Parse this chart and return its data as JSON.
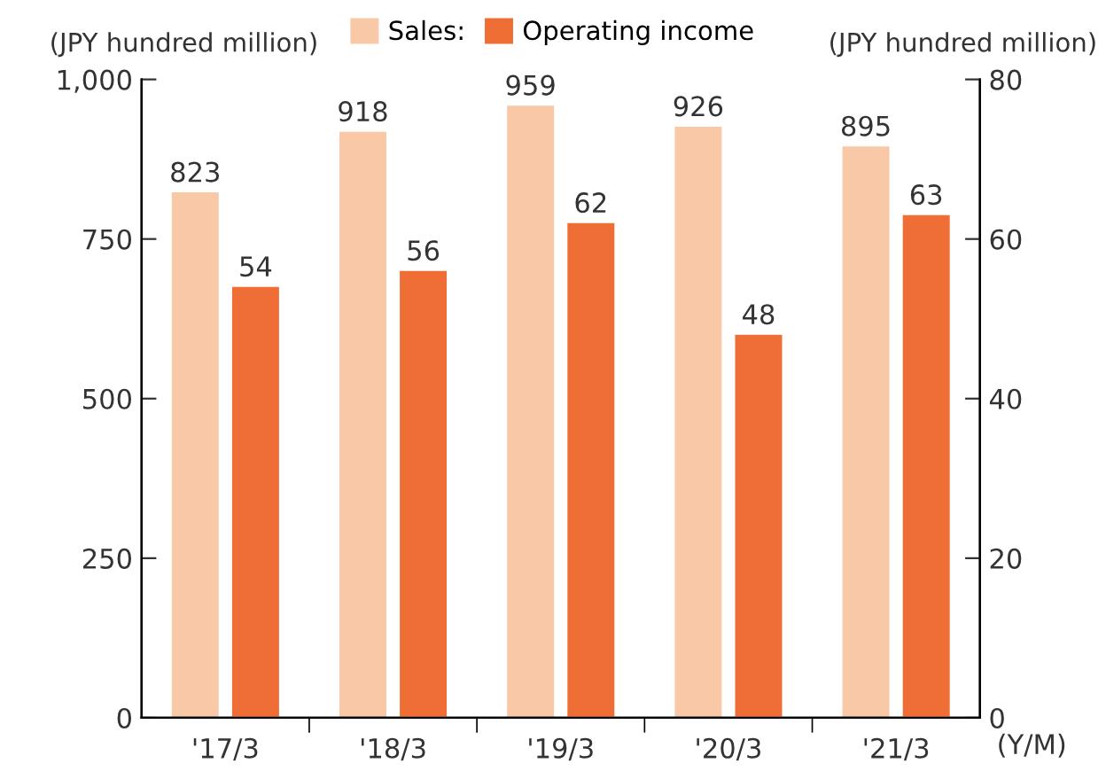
{
  "chart_data": {
    "type": "bar",
    "categories": [
      "'17/3",
      "'18/3",
      "'19/3",
      "'20/3",
      "'21/3"
    ],
    "series": [
      {
        "name": "Sales:",
        "color": "#f9c8a6",
        "values": [
          823,
          918,
          959,
          926,
          895
        ]
      },
      {
        "name": "Operating income",
        "color": "#ee6e35",
        "values": [
          54,
          56,
          62,
          48,
          63
        ],
        "axis": "y2"
      }
    ],
    "ylabel": "(JPY hundred million)",
    "y2label": "(JPY hundred million)",
    "xlabel": "(Y/M)",
    "ylim": [
      0,
      1000
    ],
    "yticks": [
      0,
      250,
      500,
      750,
      {
        "value": 1000,
        "label": "1,000"
      }
    ],
    "y2lim": [
      0,
      80
    ],
    "y2ticks": [
      0,
      20,
      40,
      60,
      80
    ],
    "data_labels": true,
    "legend": "top",
    "grid": false
  }
}
